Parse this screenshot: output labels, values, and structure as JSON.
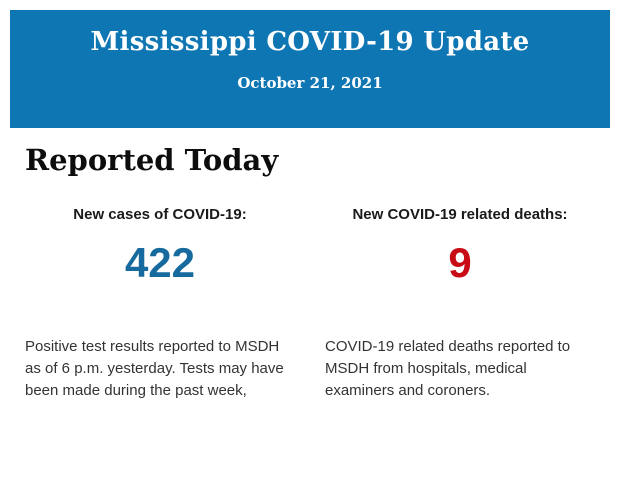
{
  "header": {
    "title": "Mississippi COVID-19 Update",
    "date": "October 21, 2021",
    "background_color": "#0f76b4",
    "text_color": "#ffffff"
  },
  "section": {
    "heading": "Reported Today"
  },
  "stats": [
    {
      "label": "New cases of COVID-19:",
      "value": "422",
      "value_color": "#176a9e",
      "description": "Positive test results reported to MSDH as of 6 p.m. yesterday. Tests may have been made during the past week,"
    },
    {
      "label": "New COVID-19 related deaths:",
      "value": "9",
      "value_color": "#c70c15",
      "description": "COVID-19 related deaths reported to MSDH from hospitals, medical examiners and coroners."
    }
  ]
}
